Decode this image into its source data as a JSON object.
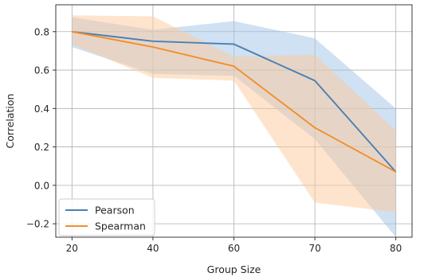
{
  "chart_data": {
    "type": "line",
    "title": "",
    "xlabel": "Group Size",
    "ylabel": "Correlation",
    "categories": [
      "20",
      "40",
      "60",
      "70",
      "80"
    ],
    "ylim": [
      -0.27,
      0.94
    ],
    "yticks": [
      -0.2,
      0.0,
      0.2,
      0.4,
      0.6,
      0.8
    ],
    "ytick_labels": [
      "−0.2",
      "0.0",
      "0.2",
      "0.4",
      "0.6",
      "0.8"
    ],
    "grid": true,
    "legend_position": "lower-left",
    "series": [
      {
        "name": "Pearson",
        "color": "#4a7fb5",
        "band_color": "#9fc4e6",
        "values": [
          0.8,
          0.75,
          0.735,
          0.545,
          0.07
        ],
        "lower": [
          0.72,
          0.58,
          0.57,
          0.24,
          -0.27
        ],
        "upper": [
          0.875,
          0.81,
          0.855,
          0.765,
          0.4
        ]
      },
      {
        "name": "Spearman",
        "color": "#f28e2b",
        "band_color": "#fdc99a",
        "values": [
          0.8,
          0.72,
          0.62,
          0.3,
          0.07
        ],
        "lower": [
          0.735,
          0.56,
          0.545,
          -0.09,
          -0.14
        ],
        "upper": [
          0.885,
          0.88,
          0.67,
          0.68,
          0.285
        ]
      }
    ]
  }
}
